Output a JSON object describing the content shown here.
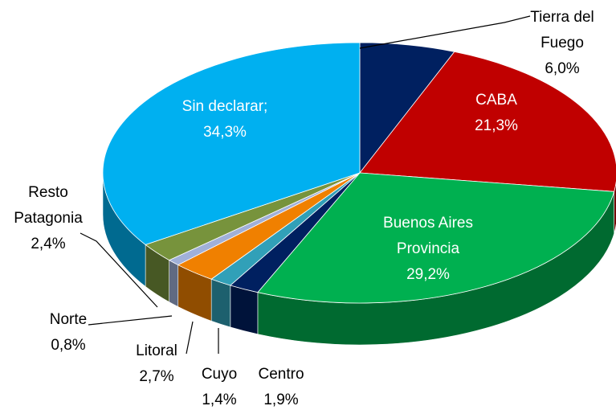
{
  "chart_data": {
    "type": "pie3d",
    "categories": [
      "Tierra del Fuego",
      "CABA",
      "Buenos Aires Provincia",
      "Centro",
      "Cuyo",
      "Litoral",
      "Norte",
      "Resto Patagonia",
      "Sin declarar;"
    ],
    "values": [
      6.0,
      21.3,
      29.2,
      1.9,
      1.4,
      2.7,
      0.8,
      2.4,
      34.3
    ],
    "value_labels": [
      "6,0%",
      "21,3%",
      "29,2%",
      "1,9%",
      "1,4%",
      "2,7%",
      "0,8%",
      "2,4%",
      "34,3%"
    ],
    "colors": [
      "#002060",
      "#c00000",
      "#00b050",
      "#002060",
      "#31a0b8",
      "#f08000",
      "#a0b0d8",
      "#77933c",
      "#00b0f0"
    ]
  }
}
